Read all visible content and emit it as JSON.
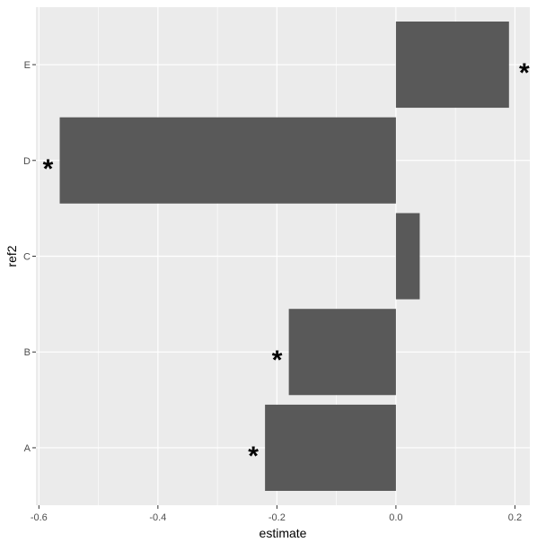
{
  "chart_data": {
    "type": "bar",
    "orientation": "horizontal",
    "xlabel": "estimate",
    "ylabel": "ref2",
    "xlim": [
      -0.605,
      0.225
    ],
    "x_ticks": [
      -0.6,
      -0.4,
      -0.2,
      0.0,
      0.2
    ],
    "x_tick_labels": [
      "-0.6",
      "-0.4",
      "-0.2",
      "0.0",
      "0.2"
    ],
    "categories": [
      "A",
      "B",
      "C",
      "D",
      "E"
    ],
    "values": [
      -0.22,
      -0.18,
      0.04,
      -0.565,
      0.19
    ],
    "significance": [
      "*",
      "*",
      "",
      "*",
      "*"
    ],
    "grid": true,
    "legend": "none",
    "colors": {
      "panel_background": "#ebebeb",
      "grid_line": "#ffffff",
      "bar_fill": "#595959",
      "annotation": "#000000",
      "tick_text": "#4d4d4d",
      "title_text": "#000000"
    }
  }
}
